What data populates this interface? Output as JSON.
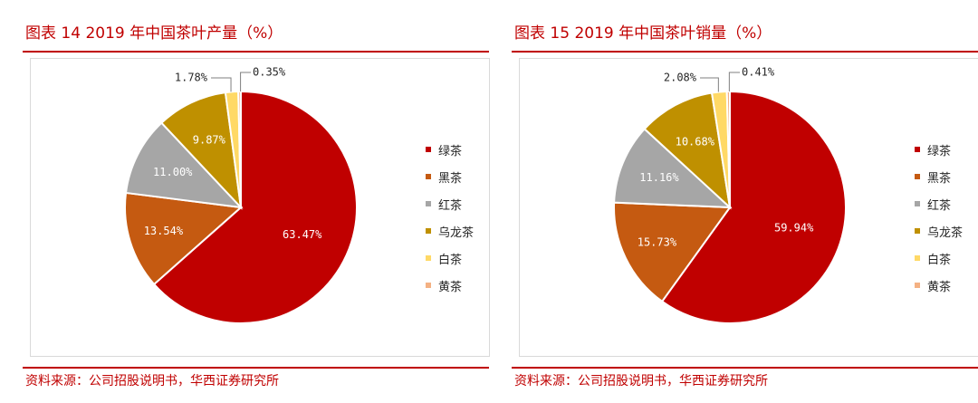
{
  "charts": [
    {
      "figure_title": "图表 14   2019 年中国茶叶产量（%）",
      "source": "资料来源：公司招股说明书，华西证券研究所"
    },
    {
      "figure_title": "图表 15   2019 年中国茶叶销量（%）",
      "source": "资料来源：公司招股说明书，华西证券研究所"
    }
  ],
  "chart_data": [
    {
      "type": "pie",
      "title": "2019 年中国茶叶产量（%）",
      "categories": [
        "绿茶",
        "黑茶",
        "红茶",
        "乌龙茶",
        "白茶",
        "黄茶"
      ],
      "values": [
        63.47,
        13.54,
        11.0,
        9.87,
        1.78,
        0.35
      ],
      "labels": [
        "63.47%",
        "13.54%",
        "11.00%",
        "9.87%",
        "1.78%",
        "0.35%"
      ],
      "colors": [
        "#c00000",
        "#c55a11",
        "#a6a6a6",
        "#bf9000",
        "#ffd966",
        "#f4b183"
      ],
      "legend": "right"
    },
    {
      "type": "pie",
      "title": "2019 年中国茶叶销量（%）",
      "categories": [
        "绿茶",
        "黑茶",
        "红茶",
        "乌龙茶",
        "白茶",
        "黄茶"
      ],
      "values": [
        59.94,
        15.73,
        11.16,
        10.68,
        2.08,
        0.41
      ],
      "labels": [
        "59.94%",
        "15.73%",
        "11.16%",
        "10.68%",
        "2.08%",
        "0.41%"
      ],
      "colors": [
        "#c00000",
        "#c55a11",
        "#a6a6a6",
        "#bf9000",
        "#ffd966",
        "#f4b183"
      ],
      "legend": "right"
    }
  ]
}
